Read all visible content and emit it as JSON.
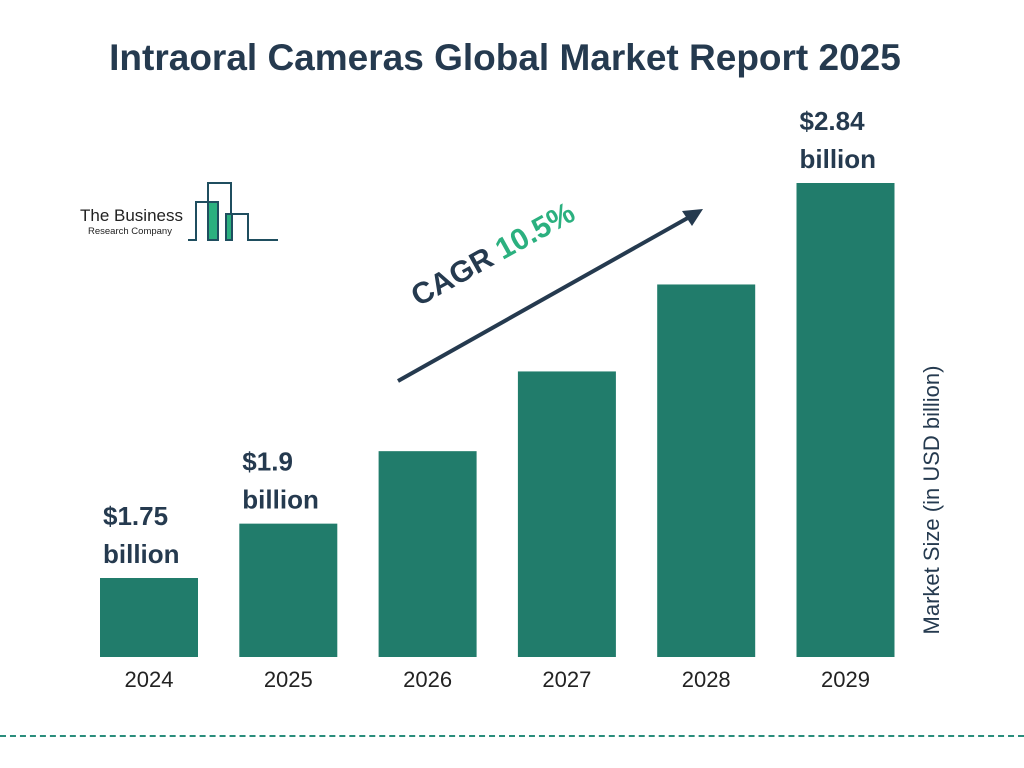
{
  "chart_data": {
    "type": "bar",
    "title": "Intraoral Cameras Global Market Report 2025",
    "ylabel": "Market Size (in USD billion)",
    "xlabel": "",
    "categories": [
      "2024",
      "2025",
      "2026",
      "2027",
      "2028",
      "2029"
    ],
    "values": [
      1.75,
      1.9,
      2.1,
      2.32,
      2.56,
      2.84
    ],
    "data_labels": [
      "$1.75 billion",
      "$1.9 billion",
      "",
      "",
      "",
      "$2.84 billion"
    ],
    "data_label_lines": [
      [
        "$1.75",
        "billion"
      ],
      [
        "$1.9",
        "billion"
      ],
      [],
      [],
      [],
      [
        "$2.84",
        "billion"
      ]
    ],
    "bar_color": "#217c6b",
    "grid": false,
    "annotation": {
      "label": "CAGR",
      "value": "10.5%",
      "value_color": "#2bb07f"
    }
  },
  "logo": {
    "line1": "The Business",
    "line2": "Research Company"
  },
  "colors": {
    "text": "#253a4f",
    "accent": "#2bb07f",
    "bar": "#217c6b",
    "divider": "#2a8d7c"
  }
}
